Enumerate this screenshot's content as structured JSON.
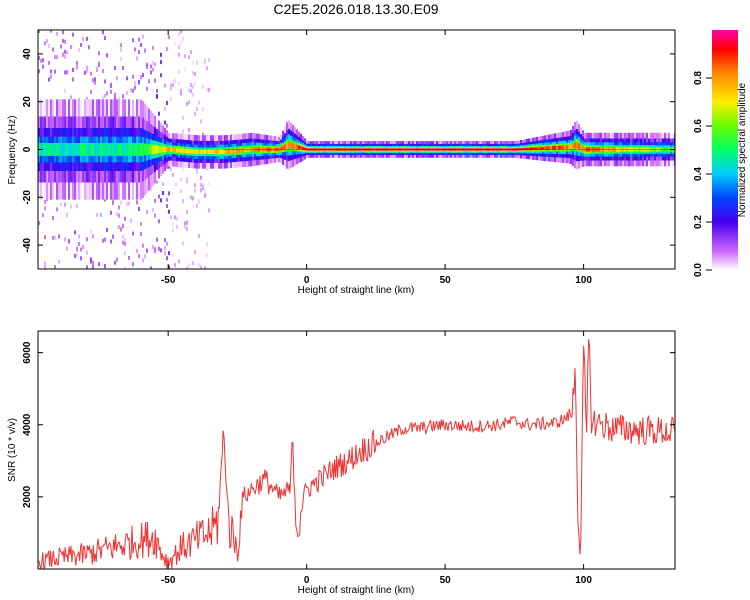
{
  "title": "C2E5.2026.018.13.30.E09",
  "colors": {
    "snr_line": "#ee3333",
    "frame": "#000000",
    "background": "#ffffff"
  },
  "chart_data": [
    {
      "type": "heatmap",
      "xlabel": "Height of straight line (km)",
      "ylabel": "Frequency (Hz)",
      "xlim": [
        -97,
        133
      ],
      "ylim": [
        -50,
        50
      ],
      "xticks": [
        -50,
        0,
        50,
        100
      ],
      "yticks": [
        -40,
        -20,
        0,
        20,
        40
      ],
      "grid": false,
      "colorbar": {
        "label": "Normalized spectral amplitude",
        "range": [
          0,
          1
        ],
        "ticks": [
          0.0,
          0.2,
          0.4,
          0.6,
          0.8
        ],
        "colormap": "rainbow (white-violet-blue-cyan-green-yellow-orange-red-magenta)"
      },
      "ridge": {
        "description": "narrow high-amplitude band near 0 Hz",
        "x": [
          -97,
          -60,
          -50,
          -40,
          -30,
          -20,
          -10,
          -7,
          0,
          25,
          75,
          95,
          97,
          100,
          133
        ],
        "center_hz": [
          0,
          0,
          0,
          -1,
          -1,
          0,
          0,
          2,
          0,
          0,
          0,
          1,
          2,
          0,
          0
        ],
        "half_width_hz": [
          6,
          6,
          2,
          2,
          2,
          2,
          1.5,
          3,
          1,
          1,
          1,
          2,
          3,
          2,
          2
        ],
        "peak_amplitude": [
          0.45,
          0.5,
          0.75,
          0.7,
          0.75,
          0.8,
          0.85,
          0.8,
          0.95,
          0.98,
          0.98,
          0.8,
          0.8,
          0.85,
          0.55
        ]
      },
      "noise_regions": [
        {
          "x_range": [
            -97,
            -55
          ],
          "spread_hz": 50,
          "amplitude": 0.1
        },
        {
          "x_range": [
            -55,
            -50
          ],
          "spread_hz": 50,
          "amplitude": 0.15
        },
        {
          "x_range": [
            -50,
            -35
          ],
          "spread_hz": 50,
          "amplitude": 0.05
        }
      ]
    },
    {
      "type": "line",
      "xlabel": "Height of straight line (km)",
      "ylabel": "SNR (10 * v/v)",
      "xlim": [
        -97,
        133
      ],
      "ylim": [
        0,
        6600
      ],
      "xticks": [
        -50,
        0,
        50,
        100
      ],
      "yticks": [
        2000,
        4000,
        6000
      ],
      "grid": false,
      "series": [
        {
          "x": [
            -97,
            -90,
            -80,
            -70,
            -60,
            -55,
            -52,
            -50,
            -45,
            -40,
            -35,
            -32,
            -30,
            -28,
            -26,
            -25,
            -23,
            -20,
            -15,
            -10,
            -6,
            -5,
            -4,
            -3,
            -1,
            0,
            5,
            10,
            15,
            20,
            25,
            30,
            35,
            40,
            50,
            60,
            70,
            75,
            80,
            90,
            94,
            96,
            97,
            98,
            99,
            100,
            101,
            102,
            103,
            104,
            110,
            120,
            133
          ],
          "y": [
            200,
            300,
            400,
            600,
            800,
            900,
            400,
            200,
            600,
            800,
            1000,
            1300,
            3800,
            1200,
            800,
            500,
            2000,
            2200,
            2500,
            2000,
            2200,
            3600,
            1500,
            1300,
            2000,
            2200,
            2500,
            2800,
            3000,
            3300,
            3500,
            3700,
            3900,
            3900,
            4000,
            3950,
            4000,
            4100,
            4000,
            4050,
            4200,
            4400,
            5800,
            1200,
            700,
            6300,
            3500,
            6600,
            3800,
            4100,
            3900,
            3850,
            3800
          ]
        }
      ]
    }
  ]
}
